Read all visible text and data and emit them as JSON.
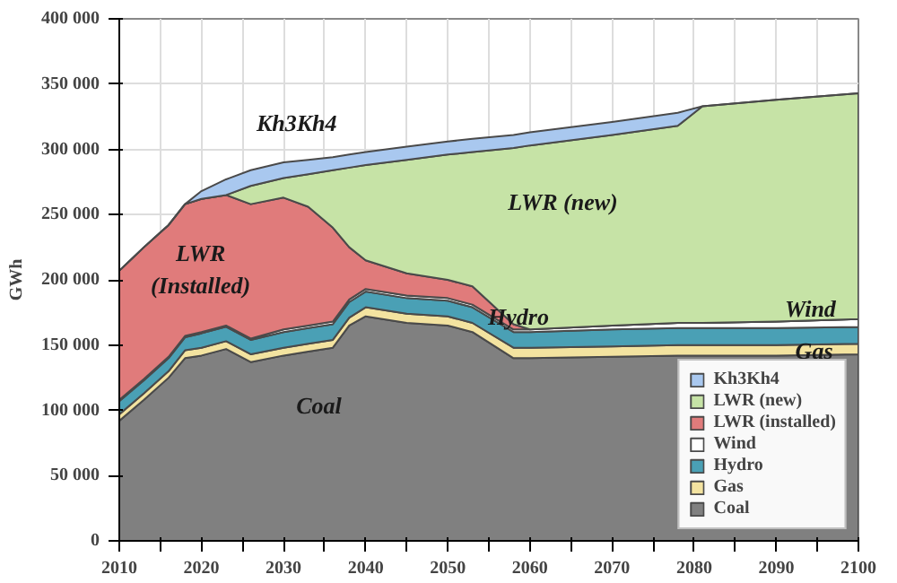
{
  "chart_data": {
    "type": "area",
    "stacked": true,
    "ylabel": "GWh",
    "x": [
      2010,
      2013,
      2016,
      2018,
      2020,
      2023,
      2026,
      2030,
      2033,
      2036,
      2038,
      2040,
      2045,
      2050,
      2053,
      2058,
      2060,
      2070,
      2078,
      2081,
      2090,
      2100
    ],
    "series": [
      {
        "name": "Coal",
        "color": "#808080",
        "values": [
          92000,
          108000,
          125000,
          140000,
          142000,
          147000,
          137000,
          142000,
          145000,
          148000,
          165000,
          172000,
          167000,
          165000,
          160000,
          140000,
          140000,
          141000,
          142000,
          142000,
          142000,
          143000
        ]
      },
      {
        "name": "Gas",
        "color": "#f3e3a0",
        "values": [
          5000,
          5000,
          5000,
          6000,
          6000,
          6000,
          6000,
          6000,
          6000,
          6000,
          6000,
          7000,
          7000,
          7000,
          7000,
          8000,
          8000,
          8000,
          8000,
          8000,
          8000,
          8000
        ]
      },
      {
        "name": "Hydro",
        "color": "#4aa0b5",
        "values": [
          10000,
          10000,
          10000,
          10000,
          11000,
          11000,
          11000,
          12000,
          12000,
          12000,
          12000,
          12000,
          12000,
          12000,
          12000,
          12000,
          12000,
          13000,
          13000,
          13000,
          13000,
          13000
        ]
      },
      {
        "name": "Wind",
        "color": "#ffffff",
        "values": [
          1000,
          1000,
          1000,
          1000,
          1000,
          1000,
          1000,
          2000,
          2000,
          2000,
          2000,
          2000,
          2000,
          2000,
          2000,
          2000,
          2000,
          3000,
          4000,
          4000,
          5000,
          6000
        ]
      },
      {
        "name": "LWR (installed)",
        "color": "#e07b7b",
        "values": [
          99000,
          101000,
          101000,
          101000,
          102000,
          100000,
          103000,
          101000,
          91000,
          72000,
          40000,
          22000,
          17000,
          14000,
          14000,
          4000,
          0,
          0,
          0,
          0,
          0,
          0
        ]
      },
      {
        "name": "LWR (new)",
        "color": "#c6e3a6",
        "values": [
          0,
          0,
          0,
          0,
          0,
          0,
          14000,
          15000,
          25000,
          44000,
          61000,
          73000,
          87000,
          96000,
          103000,
          135000,
          141000,
          146000,
          151000,
          166000,
          170000,
          173000
        ]
      },
      {
        "name": "Kh3Kh4",
        "color": "#a9c8ef",
        "values": [
          0,
          0,
          0,
          0,
          6000,
          12000,
          12000,
          12000,
          11000,
          10000,
          10000,
          10000,
          10000,
          10000,
          10000,
          10000,
          10000,
          10000,
          10000,
          0,
          0,
          0
        ]
      }
    ],
    "xlim": [
      2010,
      2100
    ],
    "xticks": [
      2010,
      {
        "value": 2015,
        "label": null
      },
      2020,
      {
        "value": 2025,
        "label": null
      },
      2030,
      {
        "value": 2035,
        "label": null
      },
      2040,
      {
        "value": 2045,
        "label": null
      },
      2050,
      {
        "value": 2055,
        "label": null
      },
      2060,
      {
        "value": 2065,
        "label": null
      },
      2070,
      {
        "value": 2075,
        "label": null
      },
      2080,
      {
        "value": 2085,
        "label": null
      },
      2090,
      {
        "value": 2095,
        "label": null
      },
      2100
    ],
    "ylim": [
      0,
      400000
    ],
    "yticks": [
      0,
      {
        "value": 50000,
        "label": "50 000"
      },
      {
        "value": 100000,
        "label": "100 000"
      },
      {
        "value": 150000,
        "label": "150 000"
      },
      {
        "value": 200000,
        "label": "200 000"
      },
      {
        "value": 250000,
        "label": "250 000"
      },
      {
        "value": 300000,
        "label": "300 000"
      },
      {
        "value": 350000,
        "label": "350 000"
      },
      {
        "value": 400000,
        "label": "400 000"
      }
    ],
    "grid": true,
    "legend": "bottom right",
    "annotations": [
      "Kh3Kh4",
      "LWR (new)",
      "LWR\n(Installed)",
      "Wind",
      "Hydro",
      "Gas",
      "Coal"
    ]
  }
}
